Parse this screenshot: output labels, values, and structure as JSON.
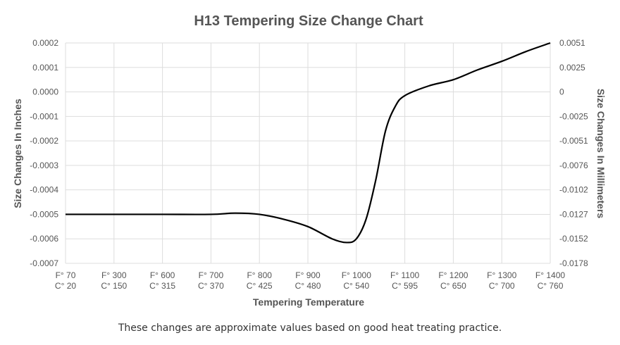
{
  "chart_data": {
    "type": "line",
    "title": "H13 Tempering Size Change Chart",
    "xlabel": "Tempering Temperature",
    "ylabel": "Size Changes In Inches",
    "y2label": "Size Changes In Millimeters",
    "x_ticks_f": [
      "F° 70",
      "F° 300",
      "F° 600",
      "F° 700",
      "F° 800",
      "F° 900",
      "F° 1000",
      "F° 1100",
      "F° 1200",
      "F° 1300",
      "F° 1400"
    ],
    "x_ticks_c": [
      "C° 20",
      "C° 150",
      "C° 315",
      "C° 370",
      "C° 425",
      "C° 480",
      "C° 540",
      "C° 595",
      "C° 650",
      "C° 700",
      "C° 760"
    ],
    "ylim": [
      -0.0007,
      0.0002
    ],
    "y_ticks": [
      "0.0002",
      "0.0001",
      "0.0000",
      "-0.0001",
      "-0.0002",
      "-0.0003",
      "-0.0004",
      "-0.0005",
      "-0.0006",
      "-0.0007"
    ],
    "y2_ticks": [
      "0.0051",
      "0.0025",
      "0",
      "-0.0025",
      "-0.0051",
      "-0.0076",
      "-0.0102",
      "-0.0127",
      "-0.0152",
      "-0.0178"
    ],
    "grid": true,
    "line_color": "#000000",
    "grid_color": "#dddddd",
    "series": [
      {
        "x": [
          0,
          1,
          2,
          3,
          3.5,
          4,
          4.5,
          5,
          5.5,
          5.8,
          6,
          6.2,
          6.4,
          6.6,
          6.8,
          7,
          7.5,
          8,
          8.5,
          9,
          9.5,
          10
        ],
        "values": [
          -0.0005,
          -0.0005,
          -0.0005,
          -0.0005,
          -0.000495,
          -0.0005,
          -0.00052,
          -0.00055,
          -0.0006,
          -0.000615,
          -0.0006,
          -0.00052,
          -0.00036,
          -0.00016,
          -6e-05,
          -1.5e-05,
          2.5e-05,
          5e-05,
          9e-05,
          0.000125,
          0.000165,
          0.0002
        ]
      }
    ]
  },
  "caption": "These changes are approximate values based on good heat treating practice."
}
